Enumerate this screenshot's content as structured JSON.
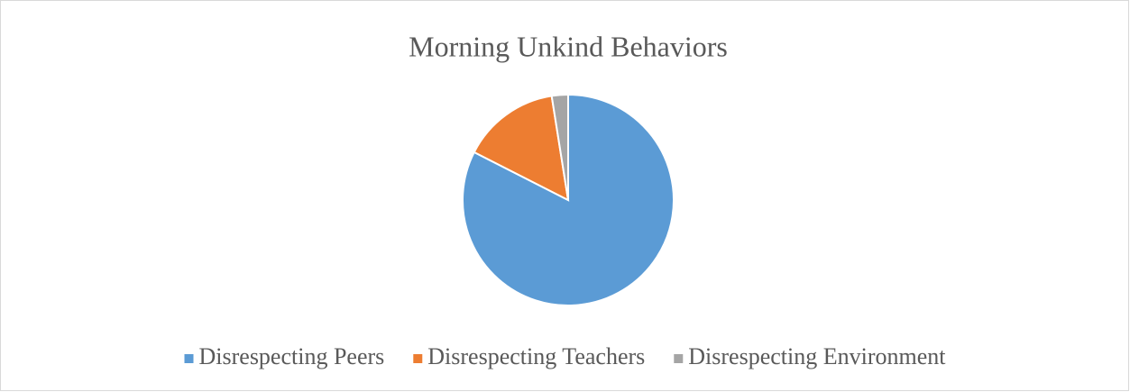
{
  "chart_data": {
    "type": "pie",
    "title": "Morning Unkind Behaviors",
    "categories": [
      "Disrespecting Peers",
      "Disrespecting Teachers",
      "Disrespecting Environment"
    ],
    "values": [
      82.5,
      15,
      2.5
    ],
    "colors": [
      "#5b9bd5",
      "#ed7d31",
      "#a5a5a5"
    ],
    "legend": "bottom"
  }
}
